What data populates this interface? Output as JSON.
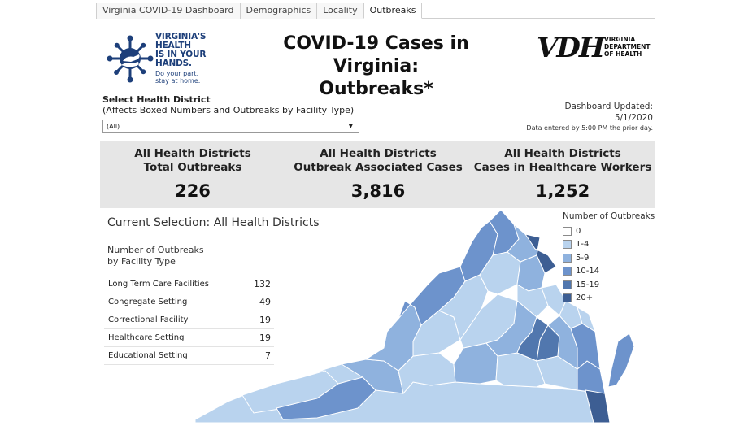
{
  "tabs": [
    {
      "label": "Virginia COVID-19 Dashboard",
      "active": false
    },
    {
      "label": "Demographics",
      "active": false
    },
    {
      "label": "Locality",
      "active": false
    },
    {
      "label": "Outbreaks",
      "active": true
    }
  ],
  "logo_left": {
    "line1": "VIRGINIA'S",
    "line2": "HEALTH",
    "line3": "IS IN YOUR",
    "line4": "HANDS.",
    "sub1": "Do your part,",
    "sub2": "stay at home."
  },
  "title_line1": "COVID-19 Cases in Virginia:",
  "title_line2": "Outbreaks*",
  "logo_right": {
    "mark": "VDH",
    "line1": "VIRGINIA",
    "line2": "DEPARTMENT",
    "line3": "OF HEALTH"
  },
  "filter": {
    "title": "Select Health District",
    "subtitle": "(Affects Boxed Numbers and Outbreaks by Facility Type)",
    "selected": "(All)"
  },
  "updated": {
    "label": "Dashboard Updated:",
    "date": "5/1/2020",
    "note": "Data entered by 5:00 PM the prior day."
  },
  "kpis": [
    {
      "line1": "All Health Districts",
      "line2": "Total Outbreaks",
      "value": "226"
    },
    {
      "line1": "All Health Districts",
      "line2": "Outbreak Associated Cases",
      "value": "3,816"
    },
    {
      "line1": "All Health Districts",
      "line2": "Cases in Healthcare Workers",
      "value": "1,252"
    }
  ],
  "current_selection": "Current Selection: All Health Districts",
  "facility": {
    "title_line1": "Number of Outbreaks",
    "title_line2": "by Facility Type",
    "rows": [
      {
        "name": "Long Term Care Facilities",
        "count": "132"
      },
      {
        "name": "Congregate Setting",
        "count": "49"
      },
      {
        "name": "Correctional Facility",
        "count": "19"
      },
      {
        "name": "Healthcare Setting",
        "count": "19"
      },
      {
        "name": "Educational Setting",
        "count": "7"
      }
    ]
  },
  "legend": {
    "title": "Number of Outbreaks",
    "items": [
      {
        "label": "0",
        "color": "#ffffff"
      },
      {
        "label": "1-4",
        "color": "#b9d3ee"
      },
      {
        "label": "5-9",
        "color": "#8fb2de"
      },
      {
        "label": "10-14",
        "color": "#6d93cc"
      },
      {
        "label": "15-19",
        "color": "#5177ae"
      },
      {
        "label": "20+",
        "color": "#3d5e93"
      }
    ]
  }
}
